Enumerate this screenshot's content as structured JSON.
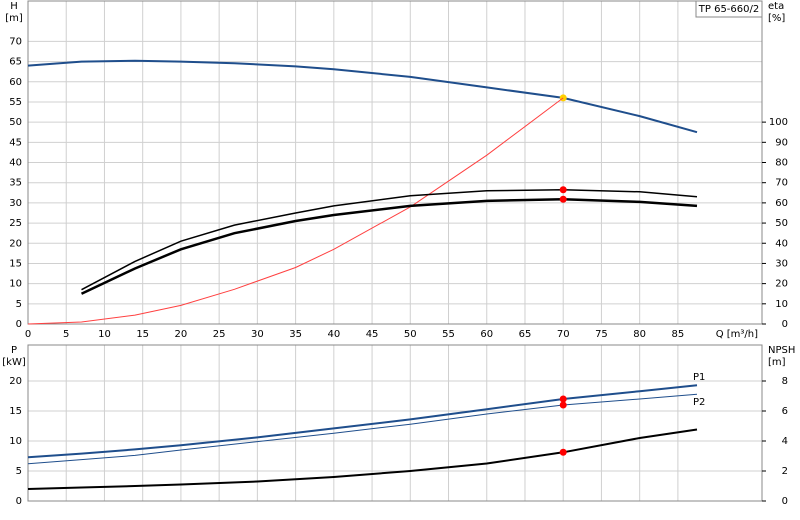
{
  "chart_data": [
    {
      "type": "line",
      "title": "TP 65-660/2",
      "ylabel": "H",
      "yunit": "[m]",
      "y2label": "eta",
      "y2unit": "[%]",
      "xlabel": "Q [m³/h]",
      "x": [
        0,
        7,
        14,
        20,
        27,
        35,
        40,
        50,
        60,
        70,
        80,
        87.5
      ],
      "xlim": [
        0,
        96
      ],
      "xticks": [
        0,
        5,
        10,
        15,
        20,
        25,
        30,
        35,
        40,
        45,
        50,
        55,
        60,
        65,
        70,
        75,
        80,
        85
      ],
      "xtick_labels": true,
      "ylim": [
        0,
        80
      ],
      "yticks": [
        0,
        5,
        10,
        15,
        20,
        25,
        30,
        35,
        40,
        45,
        50,
        55,
        60,
        65,
        70
      ],
      "y2lim": [
        0,
        160
      ],
      "y2ticks": [
        0,
        10,
        20,
        30,
        40,
        50,
        60,
        70,
        80,
        90,
        100
      ],
      "grid": true,
      "duty_x": 70,
      "series": [
        {
          "color": "#1f4e8c",
          "width": 2,
          "duty_marker": "#ffd000",
          "values": [
            64,
            65,
            65.2,
            65,
            64.6,
            63.8,
            63.1,
            61.2,
            58.6,
            56,
            51.5,
            47.5
          ]
        },
        {
          "color": "#ff4040",
          "width": 1,
          "values": [
            0,
            0.5,
            2.2,
            4.6,
            8.6,
            14,
            18.5,
            29,
            41.8,
            56,
            null,
            null
          ]
        },
        {
          "color": "#000000",
          "width": 1.5,
          "axis": "y2",
          "duty_marker": "#ff0000",
          "values": [
            null,
            17,
            31,
            41,
            49,
            55,
            58.5,
            63.5,
            66,
            66.5,
            65.5,
            63
          ]
        },
        {
          "color": "#000000",
          "width": 2.5,
          "axis": "y2",
          "duty_marker": "#ff0000",
          "values": [
            null,
            15,
            27.5,
            37,
            45,
            51,
            54,
            58.5,
            61,
            61.8,
            60.5,
            58.5
          ]
        }
      ]
    },
    {
      "type": "line",
      "ylabel": "P",
      "yunit": "[kW]",
      "y2label": "NPSH",
      "y2unit": "[m]",
      "x": [
        0,
        7,
        14,
        20,
        30,
        40,
        50,
        60,
        70,
        80,
        87.5
      ],
      "xlim": [
        0,
        96
      ],
      "xticks": [
        0,
        5,
        10,
        15,
        20,
        25,
        30,
        35,
        40,
        45,
        50,
        55,
        60,
        65,
        70,
        75,
        80,
        85
      ],
      "xtick_labels": false,
      "ylim": [
        0,
        26
      ],
      "yticks": [
        0,
        5,
        10,
        15,
        20
      ],
      "y2lim": [
        0,
        10.4
      ],
      "y2ticks": [
        0,
        2,
        4,
        6,
        8
      ],
      "grid": true,
      "duty_x": 70,
      "series": [
        {
          "name": "P1",
          "color": "#1f4e8c",
          "width": 2,
          "duty_marker": "#ff0000",
          "values": [
            7.3,
            7.9,
            8.6,
            9.3,
            10.6,
            12.1,
            13.6,
            15.3,
            17,
            18.3,
            19.3
          ]
        },
        {
          "name": "P2",
          "color": "#1f4e8c",
          "width": 1,
          "duty_marker": "#ff0000",
          "values": [
            6.2,
            6.9,
            7.6,
            8.5,
            9.9,
            11.3,
            12.8,
            14.5,
            16,
            17,
            17.8
          ]
        },
        {
          "color": "#000000",
          "width": 2,
          "axis": "y2",
          "duty_marker": "#ff0000",
          "values": [
            0.8,
            0.9,
            1,
            1.1,
            1.3,
            1.6,
            2,
            2.5,
            3.25,
            4.2,
            4.77
          ]
        }
      ]
    }
  ]
}
